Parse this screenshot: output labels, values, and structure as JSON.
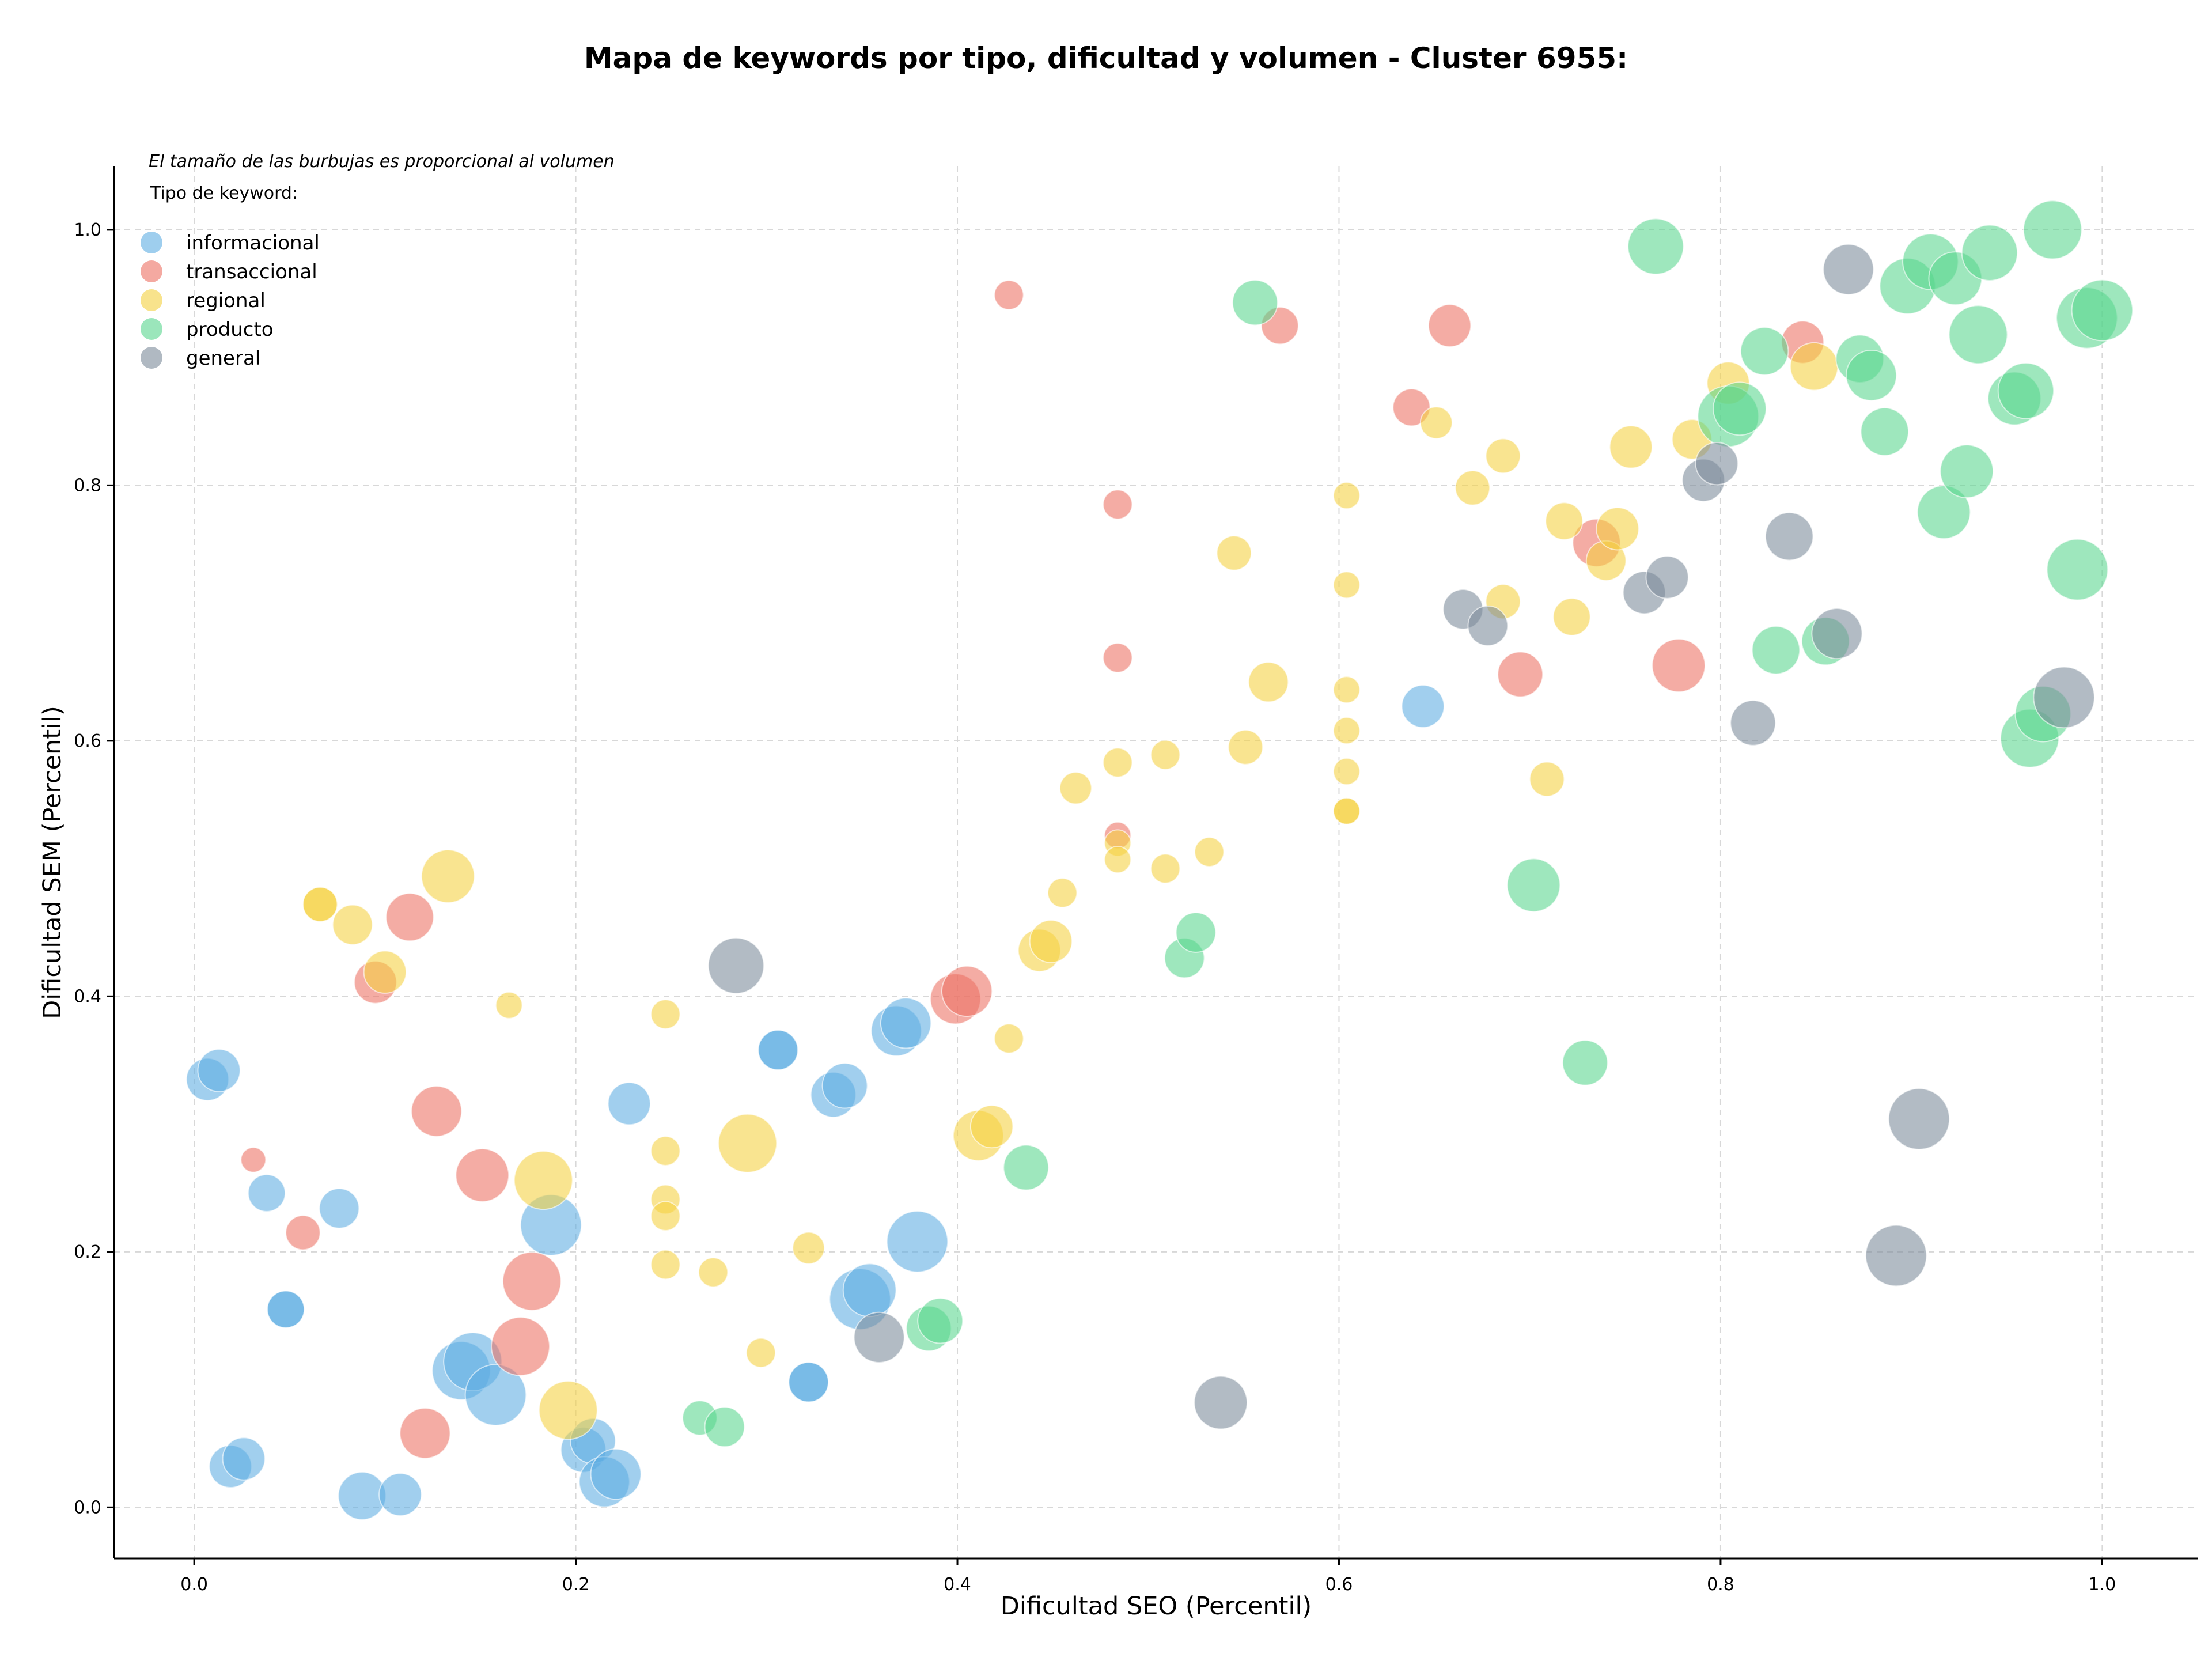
{
  "chart_data": {
    "type": "scatter",
    "title": "Mapa de keywords por tipo, dificultad y volumen - Cluster 6955:",
    "xlabel": "Dificultad SEO (Percentil)",
    "ylabel": "Dificultad SEM (Percentil)",
    "note": "El tamaño de las burbujas es proporcional al volumen",
    "legend_title": "Tipo de keyword:",
    "legend_position": "top-left",
    "xlim": [
      -0.042,
      1.05
    ],
    "ylim": [
      -0.04,
      1.05
    ],
    "x_ticks": [
      "0.0",
      "0.2",
      "0.4",
      "0.6",
      "0.8",
      "1.0"
    ],
    "y_ticks": [
      "0.0",
      "0.2",
      "0.4",
      "0.6",
      "0.8",
      "1.0"
    ],
    "grid": true,
    "series": [
      {
        "name": "informacional",
        "color": "#5DADE2",
        "points": [
          [
            0.007,
            0.335,
            0.45
          ],
          [
            0.013,
            0.342,
            0.45
          ],
          [
            0.038,
            0.246,
            0.35
          ],
          [
            0.076,
            0.234,
            0.4
          ],
          [
            0.048,
            0.155,
            0.35
          ],
          [
            0.048,
            0.155,
            0.35
          ],
          [
            0.019,
            0.032,
            0.45
          ],
          [
            0.026,
            0.038,
            0.45
          ],
          [
            0.088,
            0.009,
            0.55
          ],
          [
            0.108,
            0.01,
            0.45
          ],
          [
            0.14,
            0.107,
            0.75
          ],
          [
            0.146,
            0.114,
            0.75
          ],
          [
            0.158,
            0.088,
            0.8
          ],
          [
            0.187,
            0.221,
            0.8
          ],
          [
            0.204,
            0.045,
            0.5
          ],
          [
            0.209,
            0.052,
            0.5
          ],
          [
            0.215,
            0.02,
            0.6
          ],
          [
            0.221,
            0.026,
            0.6
          ],
          [
            0.228,
            0.316,
            0.45
          ],
          [
            0.306,
            0.358,
            0.4
          ],
          [
            0.306,
            0.358,
            0.4
          ],
          [
            0.322,
            0.098,
            0.4
          ],
          [
            0.322,
            0.098,
            0.4
          ],
          [
            0.335,
            0.323,
            0.5
          ],
          [
            0.341,
            0.33,
            0.5
          ],
          [
            0.349,
            0.163,
            0.8
          ],
          [
            0.354,
            0.17,
            0.65
          ],
          [
            0.368,
            0.373,
            0.6
          ],
          [
            0.373,
            0.379,
            0.6
          ],
          [
            0.379,
            0.208,
            0.8
          ],
          [
            0.644,
            0.627,
            0.45
          ]
        ]
      },
      {
        "name": "transaccional",
        "color": "#EC7063",
        "points": [
          [
            0.031,
            0.272,
            0.12
          ],
          [
            0.057,
            0.215,
            0.3
          ],
          [
            0.095,
            0.411,
            0.45
          ],
          [
            0.113,
            0.462,
            0.55
          ],
          [
            0.127,
            0.31,
            0.6
          ],
          [
            0.121,
            0.058,
            0.6
          ],
          [
            0.151,
            0.26,
            0.65
          ],
          [
            0.177,
            0.177,
            0.75
          ],
          [
            0.171,
            0.126,
            0.75
          ],
          [
            0.399,
            0.398,
            0.6
          ],
          [
            0.405,
            0.404,
            0.6
          ],
          [
            0.427,
            0.949,
            0.2
          ],
          [
            0.484,
            0.785,
            0.2
          ],
          [
            0.484,
            0.665,
            0.2
          ],
          [
            0.484,
            0.526,
            0.15
          ],
          [
            0.569,
            0.925,
            0.35
          ],
          [
            0.638,
            0.861,
            0.35
          ],
          [
            0.658,
            0.925,
            0.45
          ],
          [
            0.695,
            0.652,
            0.5
          ],
          [
            0.735,
            0.755,
            0.55
          ],
          [
            0.778,
            0.659,
            0.65
          ],
          [
            0.843,
            0.912,
            0.45
          ]
        ]
      },
      {
        "name": "regional",
        "color": "#F4D03F",
        "points": [
          [
            0.066,
            0.472,
            0.3
          ],
          [
            0.066,
            0.472,
            0.3
          ],
          [
            0.083,
            0.456,
            0.4
          ],
          [
            0.1,
            0.419,
            0.45
          ],
          [
            0.133,
            0.494,
            0.65
          ],
          [
            0.165,
            0.393,
            0.15
          ],
          [
            0.183,
            0.256,
            0.75
          ],
          [
            0.196,
            0.076,
            0.75
          ],
          [
            0.247,
            0.386,
            0.2
          ],
          [
            0.247,
            0.279,
            0.2
          ],
          [
            0.247,
            0.241,
            0.2
          ],
          [
            0.247,
            0.228,
            0.2
          ],
          [
            0.247,
            0.19,
            0.2
          ],
          [
            0.272,
            0.184,
            0.2
          ],
          [
            0.29,
            0.285,
            0.75
          ],
          [
            0.297,
            0.121,
            0.2
          ],
          [
            0.322,
            0.203,
            0.25
          ],
          [
            0.411,
            0.291,
            0.6
          ],
          [
            0.418,
            0.298,
            0.45
          ],
          [
            0.427,
            0.367,
            0.2
          ],
          [
            0.443,
            0.436,
            0.45
          ],
          [
            0.449,
            0.443,
            0.45
          ],
          [
            0.455,
            0.481,
            0.2
          ],
          [
            0.462,
            0.563,
            0.25
          ],
          [
            0.484,
            0.583,
            0.2
          ],
          [
            0.484,
            0.52,
            0.15
          ],
          [
            0.484,
            0.507,
            0.15
          ],
          [
            0.509,
            0.589,
            0.2
          ],
          [
            0.509,
            0.5,
            0.2
          ],
          [
            0.532,
            0.513,
            0.2
          ],
          [
            0.545,
            0.747,
            0.3
          ],
          [
            0.551,
            0.595,
            0.3
          ],
          [
            0.563,
            0.646,
            0.4
          ],
          [
            0.604,
            0.792,
            0.15
          ],
          [
            0.604,
            0.722,
            0.15
          ],
          [
            0.604,
            0.64,
            0.15
          ],
          [
            0.604,
            0.608,
            0.15
          ],
          [
            0.604,
            0.576,
            0.15
          ],
          [
            0.604,
            0.545,
            0.15
          ],
          [
            0.604,
            0.545,
            0.15
          ],
          [
            0.651,
            0.849,
            0.25
          ],
          [
            0.67,
            0.798,
            0.3
          ],
          [
            0.686,
            0.823,
            0.3
          ],
          [
            0.686,
            0.709,
            0.3
          ],
          [
            0.709,
            0.57,
            0.3
          ],
          [
            0.718,
            0.772,
            0.35
          ],
          [
            0.722,
            0.697,
            0.35
          ],
          [
            0.74,
            0.741,
            0.4
          ],
          [
            0.746,
            0.766,
            0.45
          ],
          [
            0.753,
            0.83,
            0.45
          ],
          [
            0.785,
            0.836,
            0.4
          ],
          [
            0.804,
            0.88,
            0.45
          ],
          [
            0.849,
            0.893,
            0.55
          ]
        ]
      },
      {
        "name": "producto",
        "color": "#58D68D",
        "points": [
          [
            0.265,
            0.07,
            0.3
          ],
          [
            0.278,
            0.063,
            0.4
          ],
          [
            0.385,
            0.14,
            0.5
          ],
          [
            0.391,
            0.146,
            0.5
          ],
          [
            0.436,
            0.266,
            0.5
          ],
          [
            0.519,
            0.43,
            0.4
          ],
          [
            0.525,
            0.45,
            0.4
          ],
          [
            0.556,
            0.943,
            0.5
          ],
          [
            0.702,
            0.487,
            0.65
          ],
          [
            0.729,
            0.348,
            0.5
          ],
          [
            0.766,
            0.987,
            0.7
          ],
          [
            0.804,
            0.854,
            0.8
          ],
          [
            0.81,
            0.86,
            0.65
          ],
          [
            0.823,
            0.905,
            0.55
          ],
          [
            0.829,
            0.671,
            0.55
          ],
          [
            0.855,
            0.678,
            0.55
          ],
          [
            0.873,
            0.899,
            0.55
          ],
          [
            0.879,
            0.886,
            0.6
          ],
          [
            0.886,
            0.842,
            0.55
          ],
          [
            0.898,
            0.956,
            0.7
          ],
          [
            0.91,
            0.975,
            0.7
          ],
          [
            0.917,
            0.779,
            0.65
          ],
          [
            0.923,
            0.962,
            0.65
          ],
          [
            0.929,
            0.811,
            0.65
          ],
          [
            0.935,
            0.918,
            0.75
          ],
          [
            0.941,
            0.982,
            0.7
          ],
          [
            0.954,
            0.868,
            0.65
          ],
          [
            0.96,
            0.874,
            0.7
          ],
          [
            0.962,
            0.602,
            0.75
          ],
          [
            0.969,
            0.621,
            0.7
          ],
          [
            0.974,
            1.0,
            0.75
          ],
          [
            0.987,
            0.734,
            0.8
          ],
          [
            0.992,
            0.931,
            0.8
          ],
          [
            1.0,
            0.937,
            0.8
          ]
        ]
      },
      {
        "name": "general",
        "color": "#7B8A99",
        "points": [
          [
            0.284,
            0.424,
            0.7
          ],
          [
            0.359,
            0.133,
            0.6
          ],
          [
            0.538,
            0.082,
            0.65
          ],
          [
            0.665,
            0.703,
            0.4
          ],
          [
            0.678,
            0.69,
            0.4
          ],
          [
            0.76,
            0.716,
            0.45
          ],
          [
            0.772,
            0.728,
            0.45
          ],
          [
            0.791,
            0.804,
            0.45
          ],
          [
            0.798,
            0.817,
            0.45
          ],
          [
            0.817,
            0.614,
            0.5
          ],
          [
            0.836,
            0.76,
            0.55
          ],
          [
            0.861,
            0.684,
            0.6
          ],
          [
            0.867,
            0.969,
            0.6
          ],
          [
            0.892,
            0.197,
            0.8
          ],
          [
            0.904,
            0.304,
            0.8
          ],
          [
            0.98,
            0.634,
            0.8
          ]
        ]
      }
    ]
  }
}
